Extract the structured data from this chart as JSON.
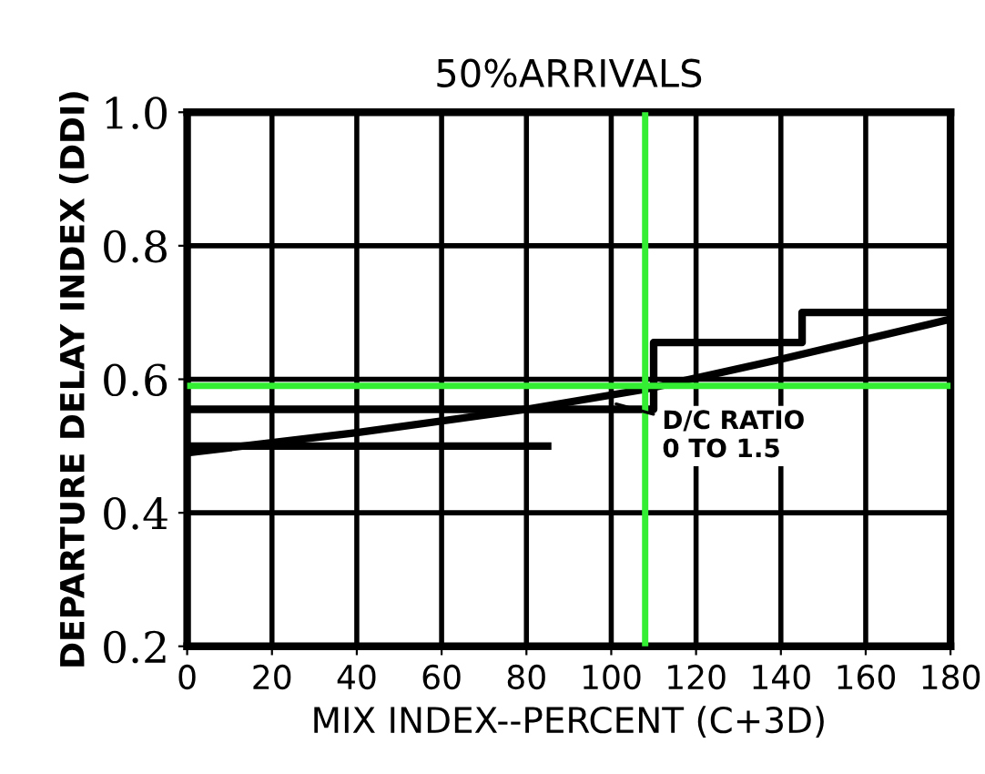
{
  "chart_data": {
    "type": "line",
    "title": "50%ARRIVALS",
    "xlabel": "MIX INDEX--PERCENT (C+3D)",
    "ylabel": "DEPARTURE DELAY INDEX (DDI)",
    "xlim": [
      0,
      180
    ],
    "xticks": [
      0,
      20,
      40,
      60,
      80,
      100,
      120,
      140,
      160,
      180
    ],
    "ylim": [
      0.2,
      1.0
    ],
    "yticks": [
      {
        "value": 0.2,
        "label": "0.2"
      },
      {
        "value": 0.4,
        "label": "0.4"
      },
      {
        "value": 0.6,
        "label": "0.6"
      },
      {
        "value": 0.8,
        "label": "0.8"
      },
      {
        "value": 1.0,
        "label": "1.0"
      }
    ],
    "grid": true,
    "legend": false,
    "marker": "none",
    "line_style": "solid",
    "series": [
      {
        "color": "#000000",
        "x": [
          0,
          40,
          80,
          108,
          140,
          180
        ],
        "values": [
          0.49,
          0.52,
          0.555,
          0.585,
          0.63,
          0.69
        ]
      },
      {
        "color": "#000000",
        "x": [
          0,
          110,
          110,
          145,
          145,
          180
        ],
        "values": [
          0.555,
          0.555,
          0.655,
          0.655,
          0.7,
          0.7
        ]
      },
      {
        "color": "#000000",
        "x": [
          0,
          85
        ],
        "values": [
          0.5,
          0.5
        ]
      }
    ],
    "ref_lines": [
      {
        "axis": "y",
        "value": 0.59,
        "color": "#33ee33"
      },
      {
        "axis": "x",
        "value": 108,
        "color": "#33ee33"
      }
    ],
    "annotations": [
      {
        "text": "D/C RATIO\n0 TO 1.5",
        "x": 100,
        "y": 0.565
      }
    ]
  }
}
